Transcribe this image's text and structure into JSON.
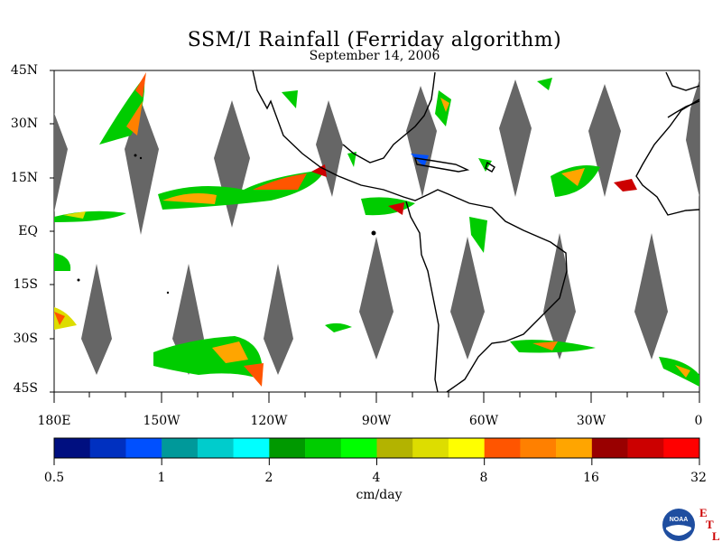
{
  "title": "SSM/I Rainfall (Ferriday algorithm)",
  "subtitle": "September 14, 2006",
  "lat_labels": [
    "45N",
    "30N",
    "15N",
    "EQ",
    "15S",
    "30S",
    "45S"
  ],
  "lon_labels": [
    "180E",
    "150W",
    "120W",
    "90W",
    "60W",
    "30W",
    "0"
  ],
  "colorbar": {
    "colors": [
      "#000f80",
      "#0030c0",
      "#0050ff",
      "#00999a",
      "#00cccc",
      "#00ffff",
      "#009900",
      "#00cc00",
      "#00ff00",
      "#b3b300",
      "#dddd00",
      "#ffff00",
      "#ff5500",
      "#ff8000",
      "#ffa500",
      "#990000",
      "#cc0000",
      "#ff0000"
    ],
    "tick_labels": [
      "0.5",
      "1",
      "2",
      "4",
      "8",
      "16",
      "32"
    ],
    "units": "cm/day"
  },
  "logo": {
    "name": "NOAA",
    "letters": [
      "E",
      "T",
      "L"
    ]
  },
  "no_data_color": "#666666",
  "coast_color": "#000000"
}
